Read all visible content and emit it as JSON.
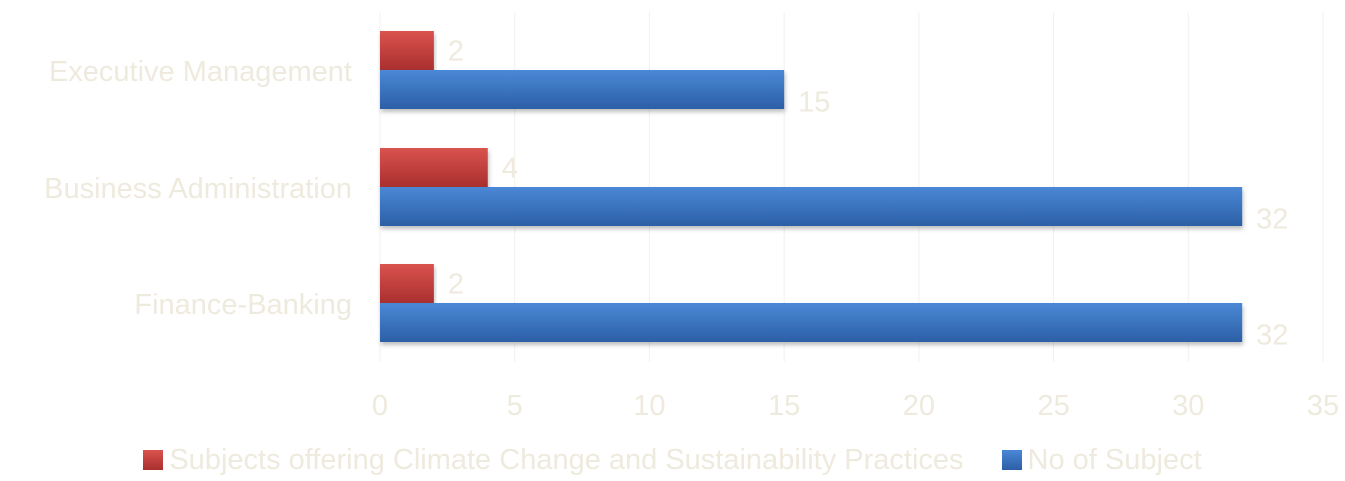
{
  "chart_data": {
    "type": "bar",
    "orientation": "horizontal",
    "categories": [
      "Executive Management",
      "Business Administration",
      "Finance-Banking"
    ],
    "series": [
      {
        "name": "Subjects offering Climate Change and Sustainability Practices",
        "values": [
          2,
          4,
          2
        ],
        "color": "#c0403f"
      },
      {
        "name": "No of Subject",
        "values": [
          15,
          32,
          32
        ],
        "color": "#3a74c2"
      }
    ],
    "xticks": [
      0,
      5,
      10,
      15,
      20,
      25,
      30,
      35
    ],
    "xlim": [
      0,
      35
    ],
    "grid": true,
    "data_labels": true,
    "legend_position": "bottom",
    "text_color": "#efeade"
  },
  "legend": {
    "items": [
      {
        "label": "Subjects offering Climate Change and Sustainability Practices"
      },
      {
        "label": "No of Subject"
      }
    ]
  }
}
